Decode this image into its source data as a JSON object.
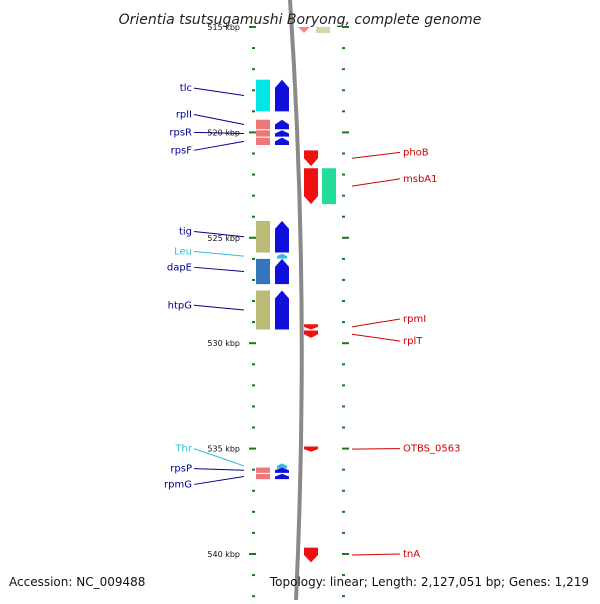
{
  "title": "Orientia tsutsugamushi Boryong, complete genome",
  "accession": "Accession: NC_009488",
  "topology": "Topology: linear; Length: 2,127,051 bp; Genes: 1,219",
  "scale": {
    "first_kbp": 515,
    "last_kbp": 540,
    "labels": [
      {
        "kbp": 515,
        "text": "515 kbp"
      },
      {
        "kbp": 520,
        "text": "520 kbp"
      },
      {
        "kbp": 525,
        "text": "525 kbp"
      },
      {
        "kbp": 530,
        "text": "530 kbp"
      },
      {
        "kbp": 535,
        "text": "535 kbp"
      },
      {
        "kbp": 540,
        "text": "540 kbp"
      }
    ]
  },
  "colors": {
    "axis": "#8a8a8a",
    "tick": "#1a7a1a",
    "left_label": "#00008b",
    "trna_label": "#33bbdd",
    "right_label": "#cc0000"
  },
  "left_genes": [
    {
      "name": "tlc",
      "kind": "cds",
      "start_kbp": 517.5,
      "end_kbp": 519.0,
      "dir": "up",
      "color": "#00e5e5",
      "label_kbp": 517.9
    },
    {
      "name": "rplI",
      "kind": "cds",
      "start_kbp": 519.4,
      "end_kbp": 519.85,
      "dir": "up",
      "color": "#ee7777",
      "label_kbp": 519.15
    },
    {
      "name": "rpsR",
      "kind": "cds",
      "start_kbp": 519.9,
      "end_kbp": 520.2,
      "dir": "up",
      "color": "#ee7777",
      "label_kbp": 520.0
    },
    {
      "name": "rpsF",
      "kind": "cds",
      "start_kbp": 520.25,
      "end_kbp": 520.6,
      "dir": "up",
      "color": "#ee7777",
      "label_kbp": 520.85
    },
    {
      "name": "tig",
      "kind": "cds",
      "start_kbp": 524.2,
      "end_kbp": 525.7,
      "dir": "up",
      "color": "#bbbb77",
      "label_kbp": 524.7
    },
    {
      "name": "Leu",
      "kind": "trna",
      "start_kbp": 525.75,
      "end_kbp": 525.85,
      "dir": "up",
      "color": "#33bbdd",
      "label_kbp": 525.65
    },
    {
      "name": "dapE",
      "kind": "cds",
      "start_kbp": 526.0,
      "end_kbp": 527.2,
      "dir": "up",
      "color": "#3377bb",
      "label_kbp": 526.4
    },
    {
      "name": "htpG",
      "kind": "cds",
      "start_kbp": 527.5,
      "end_kbp": 529.35,
      "dir": "up",
      "color": "#bbbb77",
      "label_kbp": 528.2
    },
    {
      "name": "Thr",
      "kind": "trna",
      "start_kbp": 535.7,
      "end_kbp": 535.8,
      "dir": "up",
      "color": "#33bbdd",
      "label_kbp": 535.0
    },
    {
      "name": "rpsP",
      "kind": "cds",
      "start_kbp": 535.9,
      "end_kbp": 536.15,
      "dir": "up",
      "color": "#ee7777",
      "label_kbp": 535.95
    },
    {
      "name": "rpmG",
      "kind": "cds",
      "start_kbp": 536.2,
      "end_kbp": 536.45,
      "dir": "up",
      "color": "#ee7777",
      "label_kbp": 536.7
    }
  ],
  "right_genes": [
    {
      "name": "phoB",
      "kind": "cds",
      "start_kbp": 520.85,
      "end_kbp": 521.6,
      "dir": "down",
      "color": "#ee1111",
      "label_kbp": 520.95
    },
    {
      "name": "msbA1",
      "kind": "cds",
      "start_kbp": 521.7,
      "end_kbp": 523.4,
      "dir": "down",
      "color": "#ee1111",
      "paired_color": "#22dd99",
      "label_kbp": 522.2
    },
    {
      "name": "rpmI",
      "kind": "cds",
      "start_kbp": 529.1,
      "end_kbp": 529.35,
      "dir": "down",
      "color": "#ee1111",
      "label_kbp": 528.85
    },
    {
      "name": "rplT",
      "kind": "cds",
      "start_kbp": 529.4,
      "end_kbp": 529.75,
      "dir": "down",
      "color": "#ee1111",
      "label_kbp": 529.9
    },
    {
      "name": "OTBS_0563",
      "kind": "cds",
      "start_kbp": 534.9,
      "end_kbp": 535.15,
      "dir": "down",
      "color": "#ee1111",
      "label_kbp": 535.0
    },
    {
      "name": "tnA",
      "kind": "cds",
      "start_kbp": 539.7,
      "end_kbp": 540.4,
      "dir": "down",
      "color": "#ee1111",
      "label_kbp": 540.0
    }
  ]
}
